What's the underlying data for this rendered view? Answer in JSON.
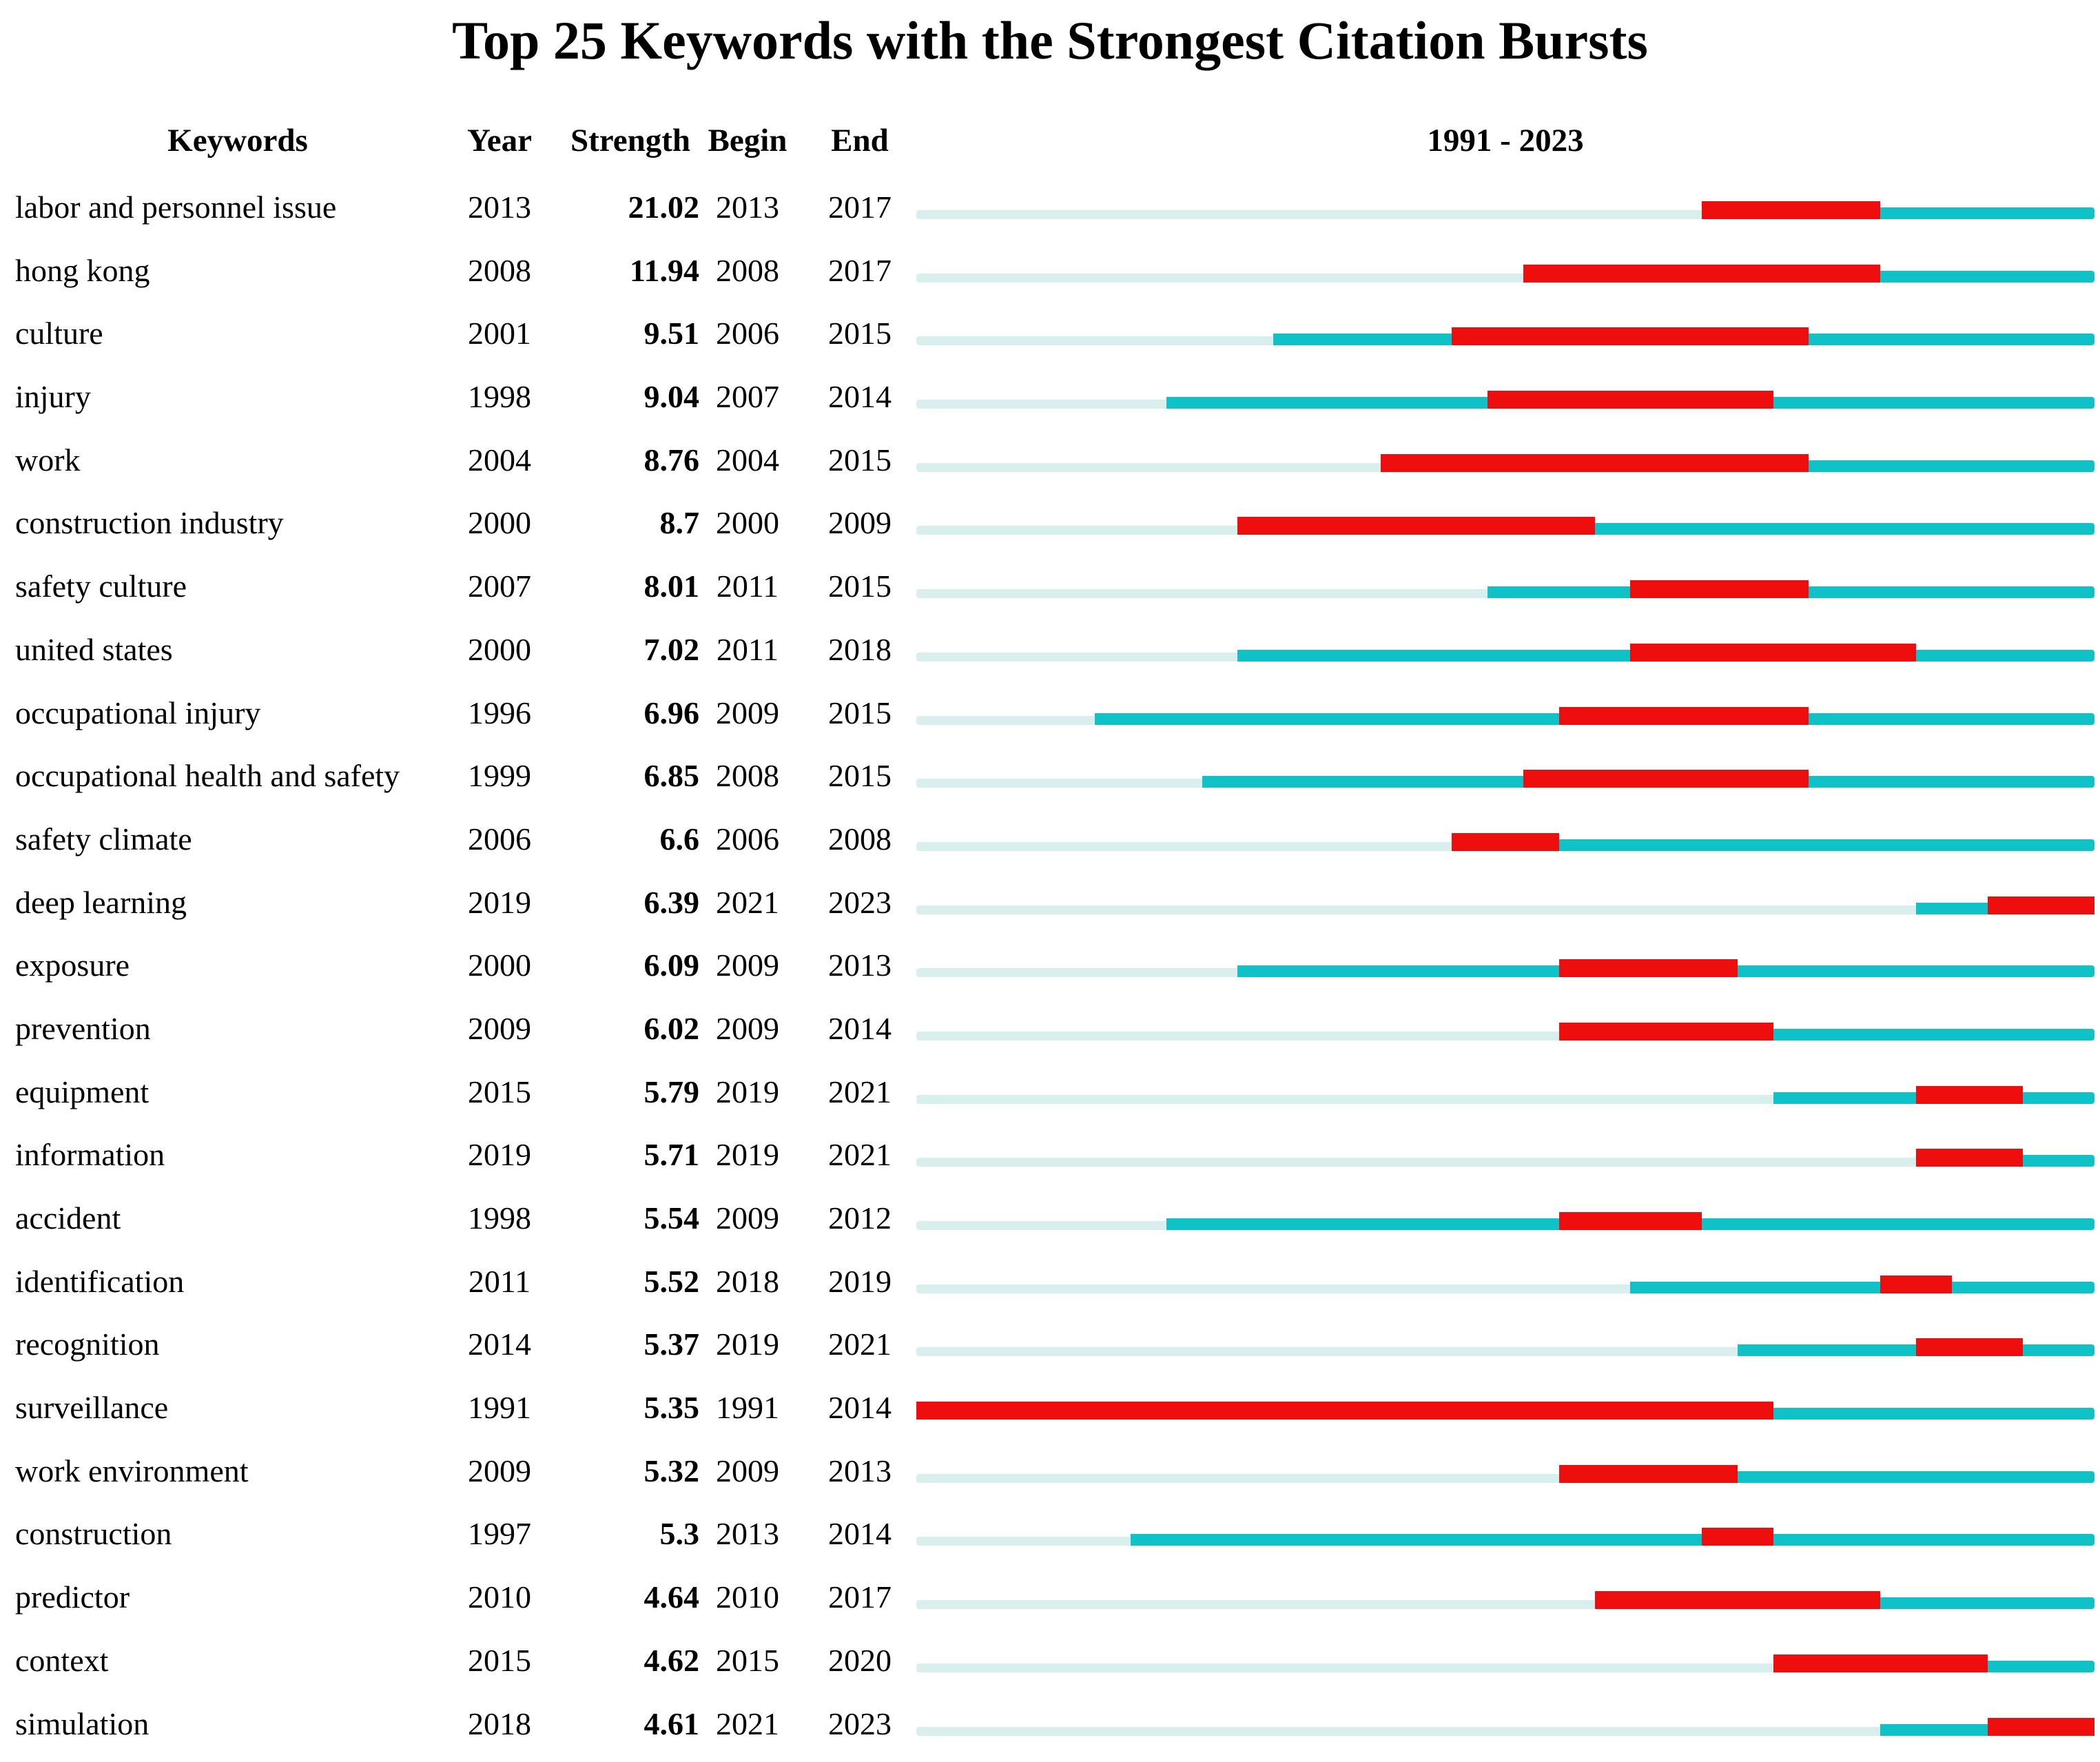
{
  "title": "Top 25 Keywords with the Strongest Citation Bursts",
  "columns": {
    "keywords": "Keywords",
    "year": "Year",
    "strength": "Strength",
    "begin": "Begin",
    "end": "End",
    "timeline": "1991 - 2023"
  },
  "timeline": {
    "start_year": 1991,
    "end_year": 2023
  },
  "colors": {
    "pre_band": "#d9efee",
    "active_band": "#0ec2c8",
    "burst_band": "#ee0e0e"
  },
  "chart_data": {
    "type": "table",
    "title": "Top 25 Keywords with the Strongest Citation Bursts",
    "timeline_label": "1991 - 2023",
    "timeline_range": [
      1991,
      2023
    ],
    "columns": [
      "Keywords",
      "Year",
      "Strength",
      "Begin",
      "End"
    ],
    "legend": {
      "pale_cyan": "years before keyword first appears",
      "teal": "years keyword active without burst",
      "red": "citation burst interval (Begin through End)"
    },
    "rows": [
      {
        "keyword": "labor and personnel issue",
        "year": 2013,
        "strength": "21.02",
        "begin": 2013,
        "end": 2017
      },
      {
        "keyword": "hong kong",
        "year": 2008,
        "strength": "11.94",
        "begin": 2008,
        "end": 2017
      },
      {
        "keyword": "culture",
        "year": 2001,
        "strength": "9.51",
        "begin": 2006,
        "end": 2015
      },
      {
        "keyword": "injury",
        "year": 1998,
        "strength": "9.04",
        "begin": 2007,
        "end": 2014
      },
      {
        "keyword": "work",
        "year": 2004,
        "strength": "8.76",
        "begin": 2004,
        "end": 2015
      },
      {
        "keyword": "construction industry",
        "year": 2000,
        "strength": "8.7",
        "begin": 2000,
        "end": 2009
      },
      {
        "keyword": "safety culture",
        "year": 2007,
        "strength": "8.01",
        "begin": 2011,
        "end": 2015
      },
      {
        "keyword": "united states",
        "year": 2000,
        "strength": "7.02",
        "begin": 2011,
        "end": 2018
      },
      {
        "keyword": "occupational injury",
        "year": 1996,
        "strength": "6.96",
        "begin": 2009,
        "end": 2015
      },
      {
        "keyword": "occupational health and safety",
        "year": 1999,
        "strength": "6.85",
        "begin": 2008,
        "end": 2015
      },
      {
        "keyword": "safety climate",
        "year": 2006,
        "strength": "6.6",
        "begin": 2006,
        "end": 2008
      },
      {
        "keyword": "deep learning",
        "year": 2019,
        "strength": "6.39",
        "begin": 2021,
        "end": 2023
      },
      {
        "keyword": "exposure",
        "year": 2000,
        "strength": "6.09",
        "begin": 2009,
        "end": 2013
      },
      {
        "keyword": "prevention",
        "year": 2009,
        "strength": "6.02",
        "begin": 2009,
        "end": 2014
      },
      {
        "keyword": "equipment",
        "year": 2015,
        "strength": "5.79",
        "begin": 2019,
        "end": 2021
      },
      {
        "keyword": "information",
        "year": 2019,
        "strength": "5.71",
        "begin": 2019,
        "end": 2021
      },
      {
        "keyword": "accident",
        "year": 1998,
        "strength": "5.54",
        "begin": 2009,
        "end": 2012
      },
      {
        "keyword": "identification",
        "year": 2011,
        "strength": "5.52",
        "begin": 2018,
        "end": 2019
      },
      {
        "keyword": "recognition",
        "year": 2014,
        "strength": "5.37",
        "begin": 2019,
        "end": 2021
      },
      {
        "keyword": "surveillance",
        "year": 1991,
        "strength": "5.35",
        "begin": 1991,
        "end": 2014
      },
      {
        "keyword": "work environment",
        "year": 2009,
        "strength": "5.32",
        "begin": 2009,
        "end": 2013
      },
      {
        "keyword": "construction",
        "year": 1997,
        "strength": "5.3",
        "begin": 2013,
        "end": 2014
      },
      {
        "keyword": "predictor",
        "year": 2010,
        "strength": "4.64",
        "begin": 2010,
        "end": 2017
      },
      {
        "keyword": "context",
        "year": 2015,
        "strength": "4.62",
        "begin": 2015,
        "end": 2020
      },
      {
        "keyword": "simulation",
        "year": 2018,
        "strength": "4.61",
        "begin": 2021,
        "end": 2023
      }
    ]
  }
}
